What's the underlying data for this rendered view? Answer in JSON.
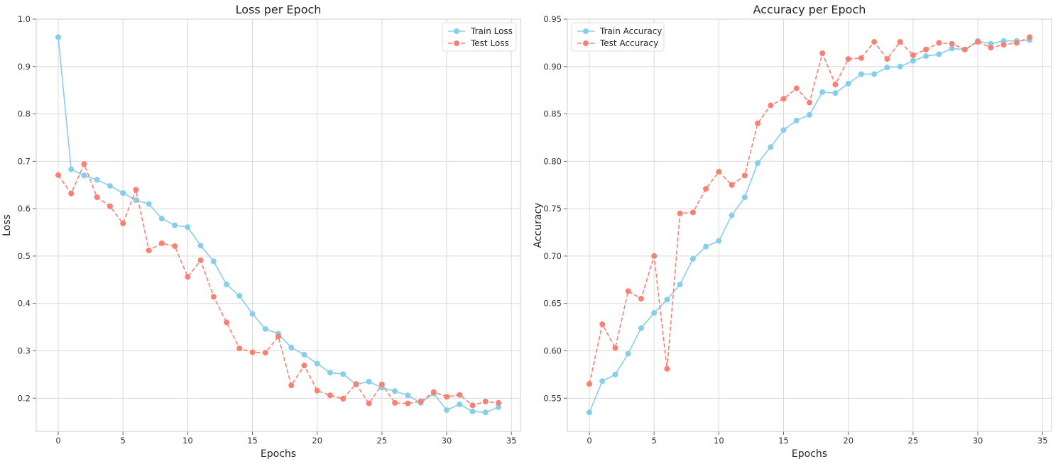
{
  "chart_data": [
    {
      "type": "line",
      "title": "Loss per Epoch",
      "xlabel": "Epochs",
      "ylabel": "Loss",
      "xlim": [
        -1.7,
        35.7
      ],
      "ylim": [
        0.13,
        1.0
      ],
      "xticks": [
        0,
        5,
        10,
        15,
        20,
        25,
        30,
        35
      ],
      "xtick_labels": [
        "0",
        "5",
        "10",
        "15",
        "20",
        "25",
        "30",
        "35"
      ],
      "yticks": [
        0.2,
        0.3,
        0.4,
        0.5,
        0.6,
        0.7,
        0.8,
        0.9,
        1.0
      ],
      "ytick_labels": [
        "0.2",
        "0.3",
        "0.4",
        "0.5",
        "0.6",
        "0.7",
        "0.8",
        "0.9",
        "1.0"
      ],
      "grid": true,
      "legend_position": "upper right",
      "x": [
        0,
        1,
        2,
        3,
        4,
        5,
        6,
        7,
        8,
        9,
        10,
        11,
        12,
        13,
        14,
        15,
        16,
        17,
        18,
        19,
        20,
        21,
        22,
        23,
        24,
        25,
        26,
        27,
        28,
        29,
        30,
        31,
        32,
        33,
        34
      ],
      "series": [
        {
          "name": "Train Loss",
          "color": "#87ceeb",
          "style": "solid",
          "values": [
            0.962,
            0.683,
            0.67,
            0.661,
            0.648,
            0.633,
            0.618,
            0.61,
            0.579,
            0.565,
            0.561,
            0.522,
            0.489,
            0.44,
            0.416,
            0.378,
            0.346,
            0.336,
            0.307,
            0.292,
            0.273,
            0.254,
            0.251,
            0.229,
            0.235,
            0.222,
            0.215,
            0.206,
            0.19,
            0.21,
            0.175,
            0.187,
            0.172,
            0.17,
            0.181
          ]
        },
        {
          "name": "Test Loss",
          "color": "#fa8072",
          "style": "dashed",
          "values": [
            0.671,
            0.632,
            0.694,
            0.624,
            0.605,
            0.569,
            0.64,
            0.512,
            0.527,
            0.521,
            0.456,
            0.491,
            0.414,
            0.36,
            0.305,
            0.297,
            0.296,
            0.33,
            0.227,
            0.269,
            0.216,
            0.206,
            0.199,
            0.23,
            0.189,
            0.229,
            0.19,
            0.189,
            0.193,
            0.213,
            0.203,
            0.207,
            0.185,
            0.193,
            0.19
          ]
        }
      ]
    },
    {
      "type": "line",
      "title": "Accuracy per Epoch",
      "xlabel": "Epochs",
      "ylabel": "Accuracy",
      "xlim": [
        -1.7,
        35.7
      ],
      "ylim": [
        0.515,
        0.95
      ],
      "xticks": [
        0,
        5,
        10,
        15,
        20,
        25,
        30,
        35
      ],
      "xtick_labels": [
        "0",
        "5",
        "10",
        "15",
        "20",
        "25",
        "30",
        "35"
      ],
      "yticks": [
        0.55,
        0.6,
        0.65,
        0.7,
        0.75,
        0.8,
        0.85,
        0.9,
        0.95
      ],
      "ytick_labels": [
        "0.55",
        "0.60",
        "0.65",
        "0.70",
        "0.75",
        "0.80",
        "0.85",
        "0.90",
        "0.95"
      ],
      "grid": true,
      "legend_position": "upper left",
      "x": [
        0,
        1,
        2,
        3,
        4,
        5,
        6,
        7,
        8,
        9,
        10,
        11,
        12,
        13,
        14,
        15,
        16,
        17,
        18,
        19,
        20,
        21,
        22,
        23,
        24,
        25,
        26,
        27,
        28,
        29,
        30,
        31,
        32,
        33,
        34
      ],
      "series": [
        {
          "name": "Train Accuracy",
          "color": "#87ceeb",
          "style": "solid",
          "values": [
            0.535,
            0.568,
            0.575,
            0.597,
            0.624,
            0.64,
            0.654,
            0.67,
            0.697,
            0.71,
            0.716,
            0.743,
            0.762,
            0.798,
            0.815,
            0.833,
            0.843,
            0.849,
            0.873,
            0.872,
            0.882,
            0.892,
            0.892,
            0.899,
            0.9,
            0.906,
            0.911,
            0.913,
            0.919,
            0.918,
            0.927,
            0.924,
            0.927,
            0.927,
            0.928
          ]
        },
        {
          "name": "Test Accuracy",
          "color": "#fa8072",
          "style": "dashed",
          "values": [
            0.565,
            0.628,
            0.603,
            0.663,
            0.655,
            0.7,
            0.581,
            0.745,
            0.746,
            0.771,
            0.789,
            0.775,
            0.785,
            0.84,
            0.859,
            0.866,
            0.877,
            0.862,
            0.914,
            0.881,
            0.908,
            0.909,
            0.926,
            0.908,
            0.926,
            0.912,
            0.918,
            0.925,
            0.924,
            0.918,
            0.926,
            0.92,
            0.923,
            0.925,
            0.931
          ]
        }
      ]
    }
  ]
}
